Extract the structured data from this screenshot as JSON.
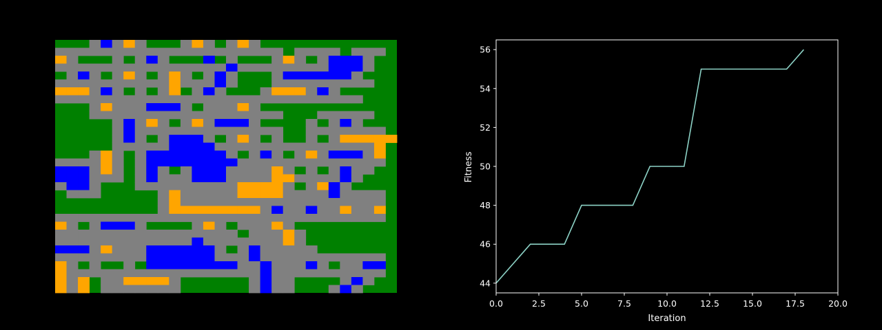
{
  "grid_map": {
    "palette": {
      "G": "#008000",
      "R": "#808080",
      "B": "#0000ff",
      "O": "#ffa500"
    },
    "rows": [
      "GGGRBRORGGGRORGRORGGGGGGGGGGG",
      "RRRRRRRRRRRRRRRRRRRRGRRRRGRRRG",
      "ORGGGRGRBRGGGBGRGGGRORGRBBBRG",
      "RRRRRRRRRRRRRRRBRRRRRRRRBBBRG",
      "GRBRGRORGRORGRBRGGGRBBBBBBRG",
      "RRRRRRRRRRORRRBRGGGRRRRRRRRRG",
      "OOORBRGRGROGRBRGGGROOORBRGGG",
      "RRRRRRRRRRRRRRRRRRRRRRRRRRRGG",
      "GGGRORRRBBBRGRRRORGGGGGGGGGGG",
      "GGGRRRRRRRRRRRRRRRRRGGGRRRRRG",
      "GGGGGRBRORGRORBBBRGGGGRGRBRGG",
      "GGGGGRBRRRRRRRRRRRRRGGRRRRRRR",
      "GGGGGRBRGRBBBRGRORGRGGRGROOOOO",
      "GGGGGRRRRRBBBBRRRRRRRRRRRRRRO",
      "GGGRORGRBBBBBBBRGRBRGRORBBBRO",
      "RRRRORGRBBBBBBBBRRRRRRRRRRRRR",
      "BBBRORGRBRGRBBBRRRRORGRGRBRRG",
      "BBBRRRGRBRRRBBBRRRROORRRRBRGG",
      "RBBRGGGRRRRRRRRROOOORGROBRGGG",
      "GRRRGGGGGRORRRRROOOORRRRBRRRR",
      "GGGGGGGGGRORRRRRRRRRRRRRRRRRR",
      "GGGGGGGGGROOOOOOOORBRRBRRORRO",
      "RRRRRRRRRRRRRRRRRRRRRRRRRRRRR",
      "ORGRBBBRGGGGRORGRRRORGGGGGGGG",
      "RRRRRRRRRRRRRRRRGRRRORGGGGGGG",
      "RRRRRRRRRRRRBRRRRRRRORGGGGGGG",
      "BBBRORRRBBBBBBRGRBRRRRRGGGGGG",
      "RRRRRRRRBBBBBBRRRBRRRRRRRRRRR",
      "ORGRGGRGBBBBBBBBRRBRRRBRGRRBB",
      "ORRRRRRRRRRRRRRRRRBRRRRRRRRRR",
      "OROGRROOOORGGGGGGRBRRGGGGRBRG",
      "OROGRRRRRRRGGGGGGRBRRGGGRBRGG"
    ]
  },
  "chart_data": {
    "type": "line",
    "xlabel": "Iteration",
    "ylabel": "Fitness",
    "xlim": [
      0,
      20
    ],
    "ylim": [
      43.5,
      56.5
    ],
    "xticks": [
      "0.0",
      "2.5",
      "5.0",
      "7.5",
      "10.0",
      "12.5",
      "15.0",
      "17.5",
      "20.0"
    ],
    "xtick_values": [
      0,
      2.5,
      5,
      7.5,
      10,
      12.5,
      15,
      17.5,
      20
    ],
    "yticks": [
      "44",
      "46",
      "48",
      "50",
      "52",
      "54",
      "56"
    ],
    "ytick_values": [
      44,
      46,
      48,
      50,
      52,
      54,
      56
    ],
    "line_color": "#8dd3c7",
    "axis_color": "#ffffff",
    "background": "#000000",
    "grid": false,
    "series": [
      {
        "x": [
          0,
          1,
          2,
          3,
          4,
          5,
          6,
          7,
          8,
          9,
          10,
          11,
          12,
          13,
          14,
          15,
          16,
          17,
          18
        ],
        "y": [
          44,
          45,
          46,
          46,
          46,
          48,
          48,
          48,
          48,
          50,
          50,
          50,
          55,
          55,
          55,
          55,
          55,
          55,
          56
        ]
      }
    ]
  }
}
